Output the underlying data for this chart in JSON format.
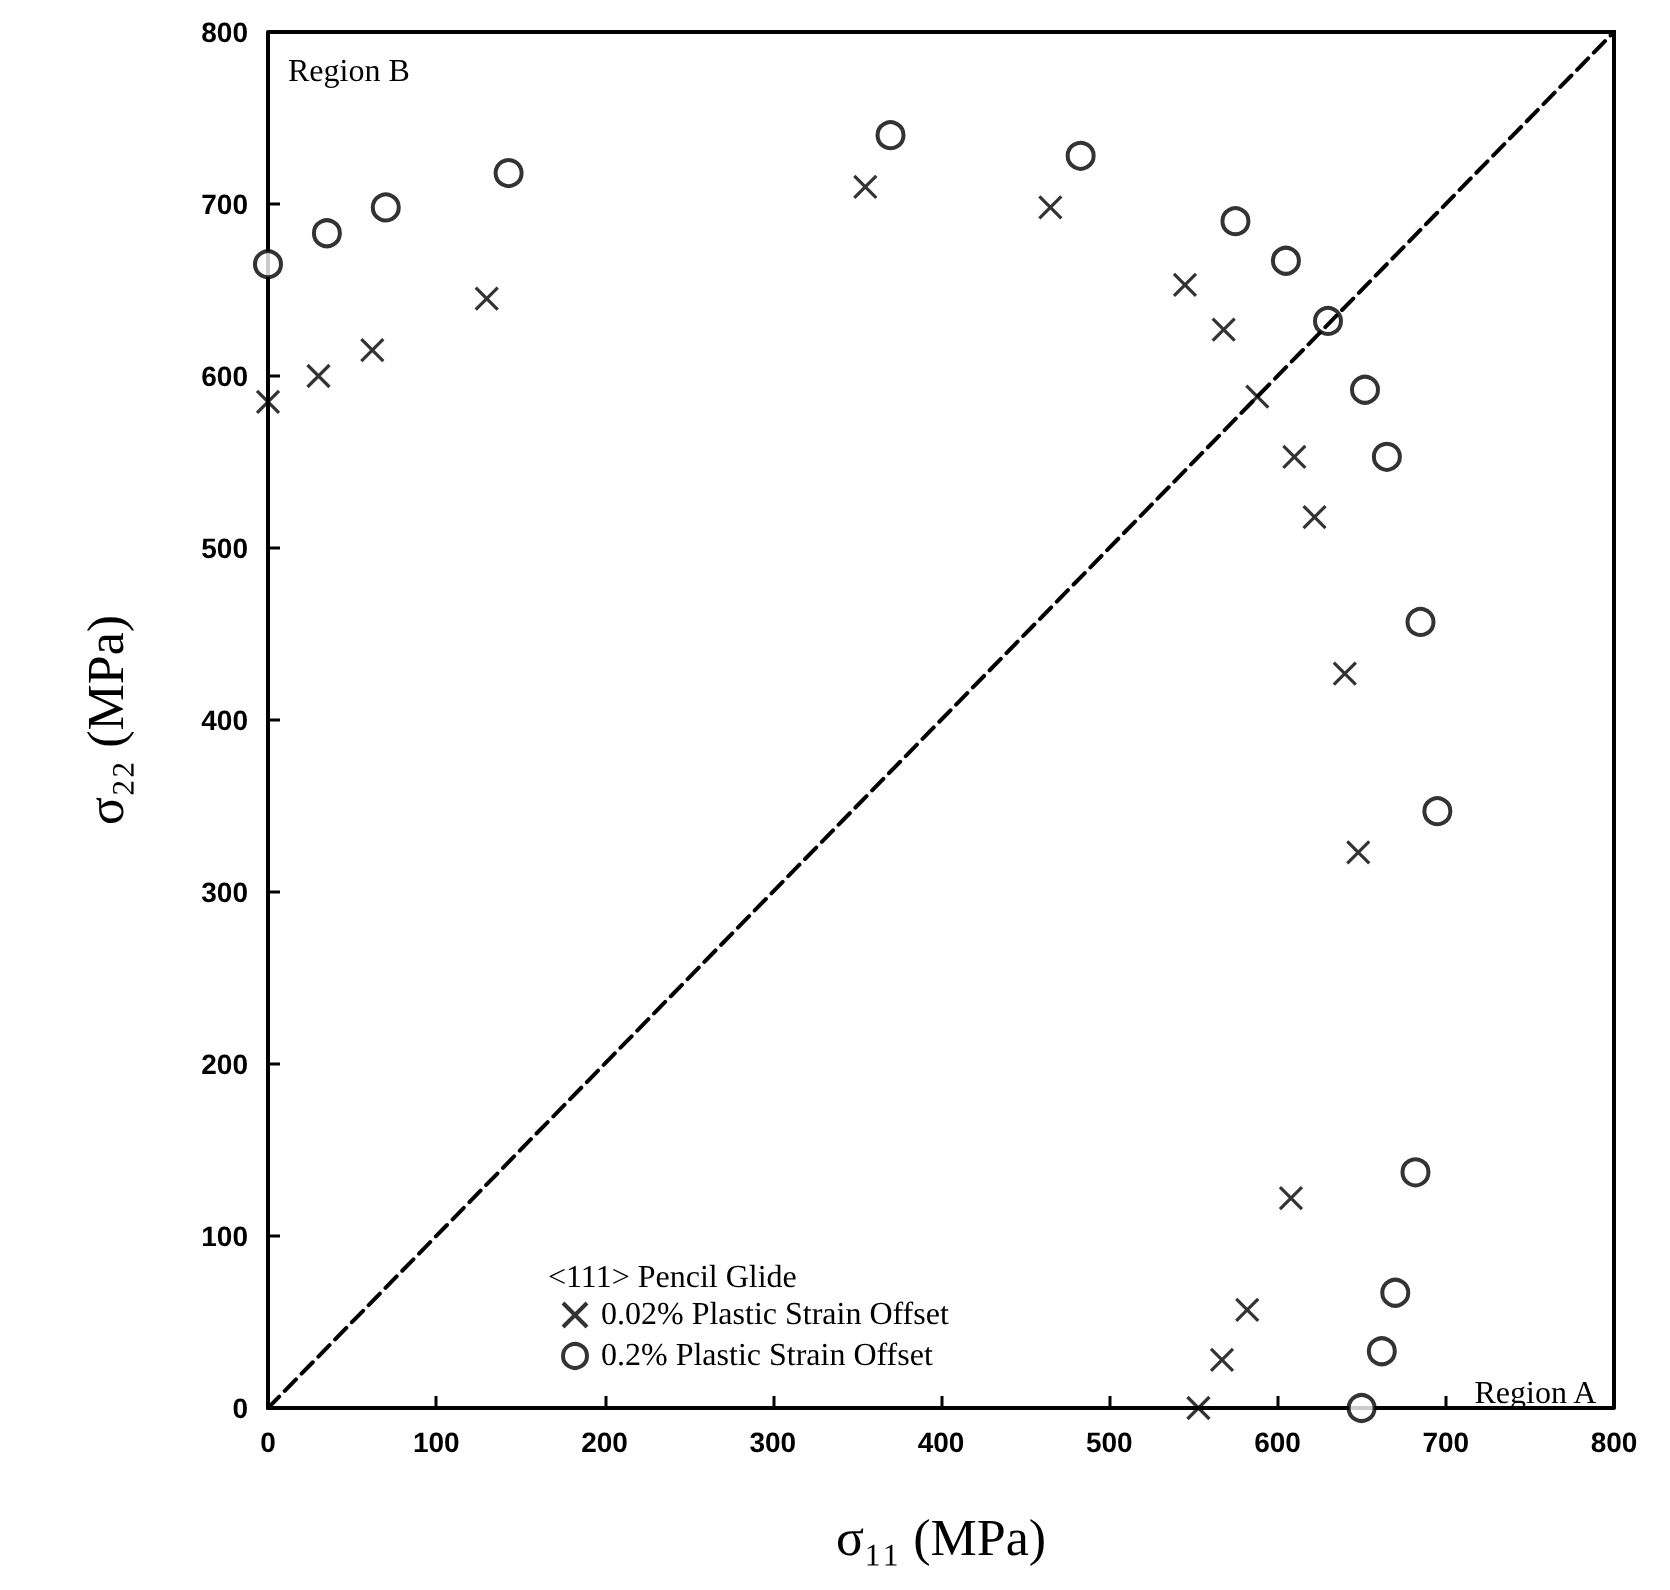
{
  "chart_data": {
    "type": "scatter",
    "xlabel": "σ₁₁ (MPa)",
    "ylabel": "σ₂₂ (MPa)",
    "legend_title": "<111> Pencil Glide",
    "legend": "bottom left",
    "grid": false,
    "xlim": [
      0,
      800
    ],
    "ylim": [
      0,
      800
    ],
    "xticks": [
      0,
      100,
      200,
      300,
      400,
      500,
      600,
      700,
      800
    ],
    "yticks": [
      0,
      100,
      200,
      300,
      400,
      500,
      600,
      700,
      800
    ],
    "annotations": [
      "Region B",
      "Region A"
    ],
    "series": [
      {
        "type": "line",
        "color": "#000000",
        "line_style": "dashed",
        "marker": "none",
        "x": [
          0,
          800
        ],
        "values": [
          0,
          800
        ]
      },
      {
        "name": "0.02% Plastic Strain Offset",
        "color": "#000000",
        "marker": "cross",
        "x": [
          0,
          30,
          62,
          130,
          355,
          465,
          545,
          568,
          588,
          610,
          622,
          640,
          648,
          608,
          582,
          567,
          553
        ],
        "values": [
          585,
          600,
          615,
          645,
          710,
          698,
          653,
          627,
          588,
          553,
          518,
          427,
          323,
          122,
          57,
          28,
          0
        ]
      },
      {
        "name": "0.2% Plastic Strain Offset",
        "color": "#000000",
        "marker": "circle",
        "x": [
          0,
          35,
          70,
          143,
          370,
          483,
          575,
          605,
          630,
          652,
          665,
          685,
          695,
          682,
          670,
          662,
          650
        ],
        "values": [
          665,
          683,
          698,
          718,
          740,
          728,
          690,
          667,
          632,
          592,
          553,
          457,
          347,
          137,
          67,
          33,
          0
        ]
      }
    ]
  }
}
